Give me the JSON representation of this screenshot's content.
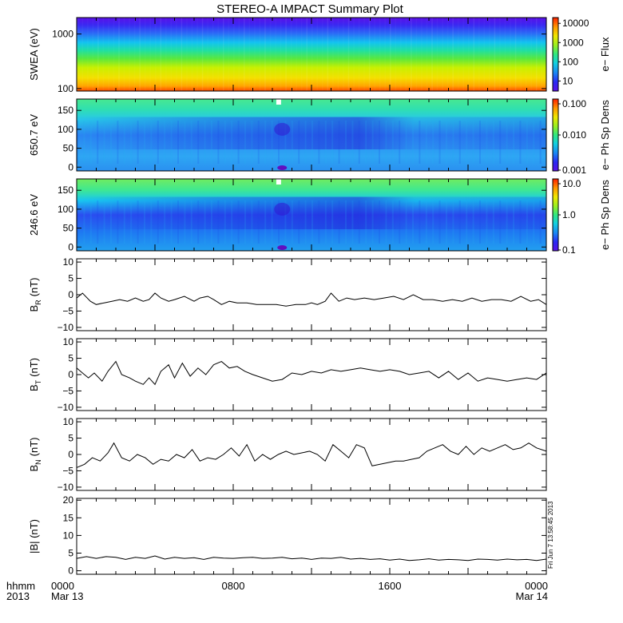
{
  "title": "STEREO-A IMPACT Summary Plot",
  "footer": {
    "row_label_1": "hhmm",
    "row_label_2": "2013",
    "ticks": [
      {
        "t": 0,
        "l1": "0000",
        "l2": "Mar 13"
      },
      {
        "t": 8,
        "l1": "0800",
        "l2": ""
      },
      {
        "t": 16,
        "l1": "1600",
        "l2": ""
      },
      {
        "t": 24,
        "l1": "0000",
        "l2": "Mar 14"
      }
    ]
  },
  "side_stamp": "Fri Jun  7 13:58:45 2013",
  "colors": {
    "line": "#000000",
    "frame": "#000000",
    "background": "#ffffff"
  },
  "chart_data": [
    {
      "type": "heatmap",
      "id": "swea",
      "ylabel": "SWEA (eV)",
      "yscale": "log",
      "ylim": [
        90,
        2000
      ],
      "yticks": [
        {
          "v": 100,
          "l": "100"
        },
        {
          "v": 1000,
          "l": "1000"
        }
      ],
      "colorbar": {
        "label": "e− Flux",
        "scale": "log",
        "range": [
          3,
          20000
        ],
        "ticks": [
          {
            "v": 10,
            "l": "10"
          },
          {
            "v": 100,
            "l": "100"
          },
          {
            "v": 1000,
            "l": "1000"
          },
          {
            "v": 10000,
            "l": "10000"
          }
        ]
      }
    },
    {
      "type": "heatmap",
      "id": "pad650",
      "ylabel": "650.7 eV",
      "ylim": [
        -10,
        180
      ],
      "yticks": [
        {
          "v": 0,
          "l": "0"
        },
        {
          "v": 50,
          "l": "50"
        },
        {
          "v": 100,
          "l": "100"
        },
        {
          "v": 150,
          "l": "150"
        }
      ],
      "colorbar": {
        "label": "e− Ph Sp Dens",
        "scale": "log",
        "range": [
          0.001,
          0.1
        ],
        "ticks": [
          {
            "v": 0.001,
            "l": "0.001"
          },
          {
            "v": 0.01,
            "l": "0.010"
          },
          {
            "v": 0.1,
            "l": "0.100"
          }
        ]
      }
    },
    {
      "type": "heatmap",
      "id": "pad246",
      "ylabel": "246.6 eV",
      "ylim": [
        -10,
        180
      ],
      "yticks": [
        {
          "v": 0,
          "l": "0"
        },
        {
          "v": 50,
          "l": "50"
        },
        {
          "v": 100,
          "l": "100"
        },
        {
          "v": 150,
          "l": "150"
        }
      ],
      "colorbar": {
        "label": "e− Ph Sp Dens",
        "scale": "log",
        "range": [
          0.1,
          10
        ],
        "ticks": [
          {
            "v": 0.1,
            "l": "0.1"
          },
          {
            "v": 1,
            "l": "1.0"
          },
          {
            "v": 10,
            "l": "10.0"
          }
        ]
      }
    },
    {
      "type": "line",
      "id": "br",
      "ylabel": "B",
      "ylabel_sub": "R",
      "ylabel_unit": "(nT)",
      "ylim": [
        -11,
        11
      ],
      "yticks": [
        {
          "v": -10,
          "l": "−10"
        },
        {
          "v": -5,
          "l": "−5"
        },
        {
          "v": 0,
          "l": "0"
        },
        {
          "v": 5,
          "l": "5"
        },
        {
          "v": 10,
          "l": "10"
        }
      ],
      "x": [
        0,
        0.3,
        0.7,
        1,
        1.4,
        1.8,
        2.2,
        2.6,
        3,
        3.4,
        3.7,
        4,
        4.3,
        4.7,
        5,
        5.5,
        6,
        6.3,
        6.7,
        7,
        7.4,
        7.8,
        8.2,
        8.7,
        9.2,
        9.7,
        10.2,
        10.7,
        11.2,
        11.7,
        12,
        12.3,
        12.7,
        13,
        13.4,
        13.8,
        14.2,
        14.7,
        15.2,
        15.7,
        16.2,
        16.7,
        17.2,
        17.7,
        18.2,
        18.7,
        19.2,
        19.7,
        20.2,
        20.7,
        21.2,
        21.7,
        22.2,
        22.7,
        23.2,
        23.6,
        24
      ],
      "y": [
        -1,
        0.5,
        -2,
        -3,
        -2.5,
        -2,
        -1.5,
        -2,
        -1,
        -2,
        -1.5,
        0.5,
        -1,
        -2,
        -1.5,
        -0.5,
        -2,
        -1,
        -0.5,
        -1.5,
        -3,
        -2,
        -2.5,
        -2.5,
        -3,
        -3,
        -3,
        -3.5,
        -3,
        -3,
        -2.5,
        -3,
        -2,
        0.5,
        -2,
        -1,
        -1.5,
        -1,
        -1.5,
        -1,
        -0.5,
        -1.5,
        0,
        -1.5,
        -1.5,
        -2,
        -1.5,
        -2,
        -1,
        -2,
        -1.5,
        -1.5,
        -2,
        -0.5,
        -2,
        -1.5,
        -3
      ]
    },
    {
      "type": "line",
      "id": "bt",
      "ylabel": "B",
      "ylabel_sub": "T",
      "ylabel_unit": "(nT)",
      "ylim": [
        -11,
        11
      ],
      "yticks": [
        {
          "v": -10,
          "l": "−10"
        },
        {
          "v": -5,
          "l": "−5"
        },
        {
          "v": 0,
          "l": "0"
        },
        {
          "v": 5,
          "l": "5"
        },
        {
          "v": 10,
          "l": "10"
        }
      ],
      "x": [
        0,
        0.3,
        0.6,
        0.9,
        1.3,
        1.6,
        2,
        2.3,
        2.7,
        3,
        3.4,
        3.7,
        4,
        4.3,
        4.7,
        5,
        5.4,
        5.8,
        6.2,
        6.6,
        7,
        7.4,
        7.8,
        8.2,
        8.6,
        9,
        9.5,
        10,
        10.5,
        11,
        11.5,
        12,
        12.5,
        13,
        13.5,
        14,
        14.5,
        15,
        15.5,
        16,
        16.5,
        17,
        17.5,
        18,
        18.5,
        19,
        19.5,
        20,
        20.5,
        21,
        21.5,
        22,
        22.5,
        23,
        23.5,
        24
      ],
      "y": [
        2,
        0.5,
        -1,
        0.5,
        -2,
        1,
        4,
        0,
        -1,
        -2,
        -3,
        -1,
        -3,
        1,
        3,
        -1,
        3.5,
        -0.5,
        2,
        0,
        3,
        4,
        2,
        2.5,
        1,
        0,
        -1,
        -2,
        -1.5,
        0.5,
        0,
        1,
        0.5,
        1.5,
        1,
        1.5,
        2,
        1.5,
        1,
        1.5,
        1,
        0,
        0.5,
        1,
        -1,
        1,
        -1.5,
        0.5,
        -2,
        -1,
        -1.5,
        -2,
        -1.5,
        -1,
        -1.5,
        0.5
      ]
    },
    {
      "type": "line",
      "id": "bn",
      "ylabel": "B",
      "ylabel_sub": "N",
      "ylabel_unit": "(nT)",
      "ylim": [
        -11,
        11
      ],
      "yticks": [
        {
          "v": -10,
          "l": "−10"
        },
        {
          "v": -5,
          "l": "−5"
        },
        {
          "v": 0,
          "l": "0"
        },
        {
          "v": 5,
          "l": "5"
        },
        {
          "v": 10,
          "l": "10"
        }
      ],
      "x": [
        0,
        0.4,
        0.8,
        1.2,
        1.6,
        1.9,
        2.3,
        2.7,
        3.1,
        3.5,
        3.9,
        4.3,
        4.7,
        5.1,
        5.5,
        5.9,
        6.3,
        6.7,
        7.1,
        7.5,
        7.9,
        8.3,
        8.7,
        9.1,
        9.5,
        9.9,
        10.3,
        10.7,
        11.1,
        11.5,
        11.9,
        12.3,
        12.7,
        13.1,
        13.5,
        13.9,
        14.3,
        14.7,
        15.1,
        15.5,
        15.9,
        16.3,
        16.7,
        17.1,
        17.5,
        17.9,
        18.3,
        18.7,
        19.1,
        19.5,
        19.9,
        20.3,
        20.7,
        21.1,
        21.5,
        21.9,
        22.3,
        22.7,
        23.1,
        23.5,
        24
      ],
      "y": [
        -4,
        -3,
        -1,
        -2,
        0.5,
        3.5,
        -1,
        -2,
        0,
        -1,
        -3,
        -1.5,
        -2,
        0,
        -1,
        1.5,
        -2,
        -1,
        -1.5,
        0,
        2,
        -0.5,
        3,
        -2,
        0,
        -1.5,
        0,
        1,
        0,
        0.5,
        1,
        0,
        -2,
        3,
        1,
        -1,
        3,
        2,
        -3.5,
        -3,
        -2.5,
        -2,
        -2,
        -1.5,
        -1,
        1,
        2,
        3,
        1,
        0,
        2.5,
        0,
        2,
        1,
        2,
        3,
        1.5,
        2,
        3.5,
        2,
        1
      ]
    },
    {
      "type": "line",
      "id": "bmag",
      "ylabel": "|B| (nT)",
      "ylim": [
        -1,
        20.5
      ],
      "yticks": [
        {
          "v": 0,
          "l": "0"
        },
        {
          "v": 5,
          "l": "5"
        },
        {
          "v": 10,
          "l": "10"
        },
        {
          "v": 15,
          "l": "15"
        },
        {
          "v": 20,
          "l": "20"
        }
      ],
      "x": [
        0,
        0.5,
        1,
        1.5,
        2,
        2.5,
        3,
        3.5,
        4,
        4.5,
        5,
        5.5,
        6,
        6.5,
        7,
        7.5,
        8,
        8.5,
        9,
        9.5,
        10,
        10.5,
        11,
        11.5,
        12,
        12.5,
        13,
        13.5,
        14,
        14.5,
        15,
        15.5,
        16,
        16.5,
        17,
        17.5,
        18,
        18.5,
        19,
        19.5,
        20,
        20.5,
        21,
        21.5,
        22,
        22.5,
        23,
        23.5,
        24
      ],
      "y": [
        3.5,
        4,
        3.5,
        4,
        3.8,
        3.2,
        3.8,
        3.5,
        4.2,
        3.3,
        3.8,
        3.5,
        3.7,
        3.2,
        3.8,
        3.6,
        3.5,
        3.7,
        3.8,
        3.5,
        3.6,
        3.8,
        3.4,
        3.6,
        3.2,
        3.6,
        3.5,
        3.8,
        3.3,
        3.5,
        3.2,
        3.4,
        3,
        3.3,
        2.9,
        3.1,
        3.4,
        3,
        3.2,
        3.1,
        2.9,
        3.3,
        3.2,
        3,
        3.3,
        3.1,
        3.2,
        2.9,
        3.3
      ]
    }
  ]
}
